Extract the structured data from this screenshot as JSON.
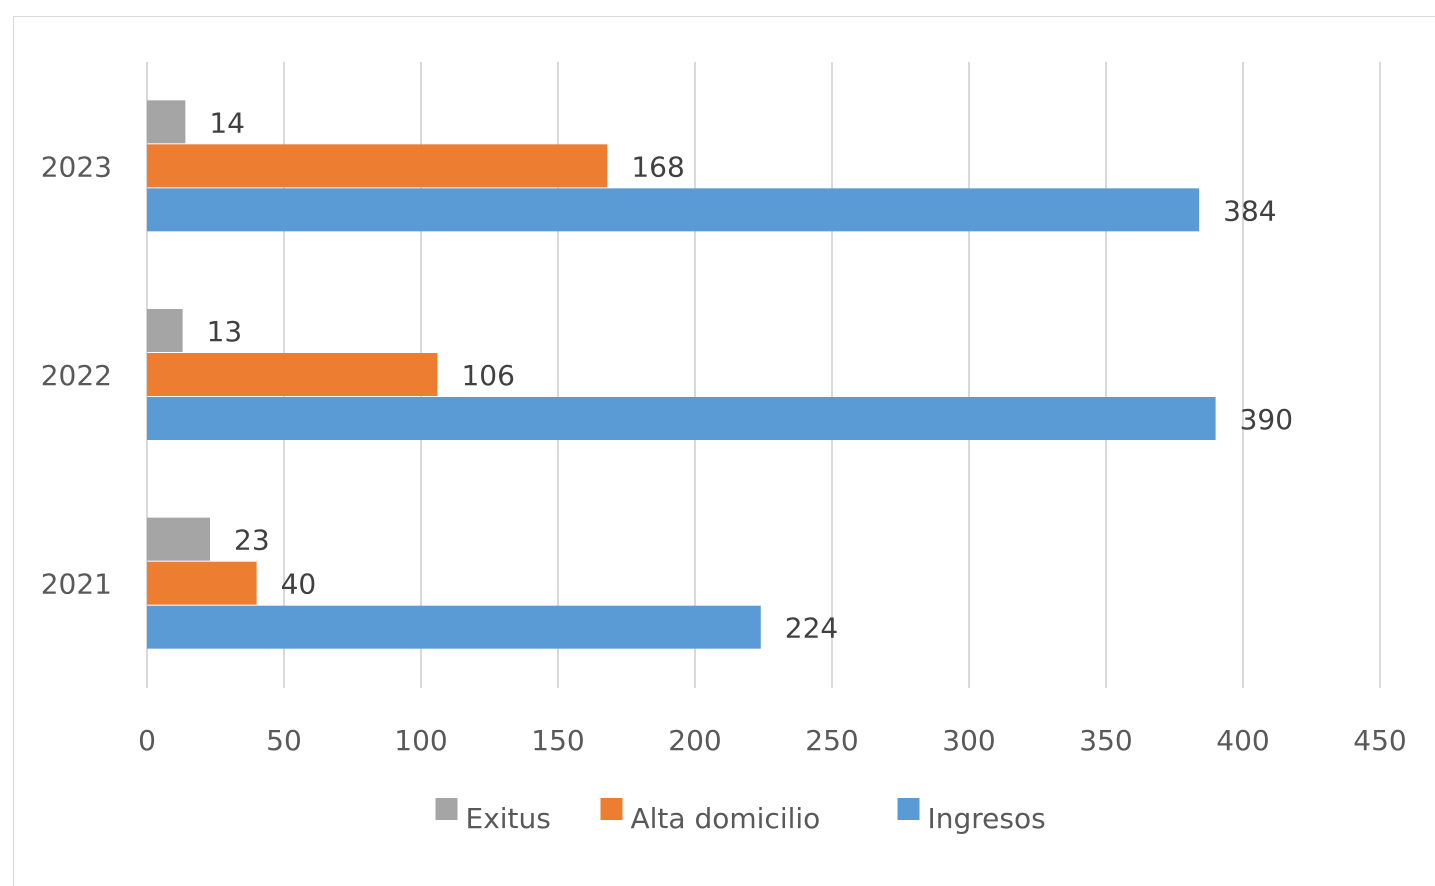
{
  "chart_data": {
    "type": "bar",
    "orientation": "horizontal",
    "categories": [
      "2021",
      "2022",
      "2023"
    ],
    "series": [
      {
        "name": "Exitus",
        "color": "#a5a5a5",
        "values": [
          23,
          13,
          14
        ]
      },
      {
        "name": "Alta domicilio",
        "color": "#ed7d31",
        "values": [
          40,
          106,
          168
        ]
      },
      {
        "name": "Ingresos",
        "color": "#5b9bd5",
        "values": [
          224,
          390,
          384
        ]
      }
    ],
    "xlim": [
      0,
      450
    ],
    "xticks": [
      0,
      50,
      100,
      150,
      200,
      250,
      300,
      350,
      400,
      450
    ],
    "grid": "vertical",
    "legend": "bottom",
    "data_labels": true,
    "title": "",
    "xlabel": "",
    "ylabel": ""
  }
}
